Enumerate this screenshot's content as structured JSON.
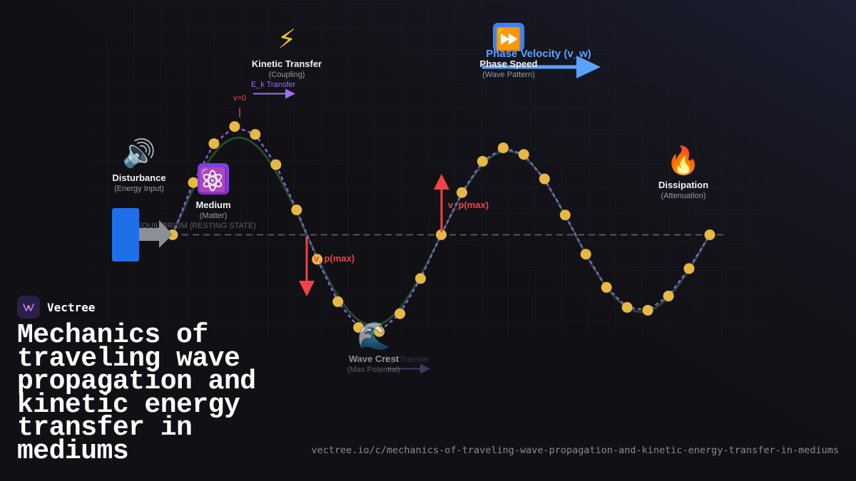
{
  "colors": {
    "background": "#111014",
    "wave": "#1f4d2a",
    "particles": "#e6b844",
    "particle_links": "#8a5cd6",
    "velocity_arrow": "#ef4444",
    "phase_arrow": "#5aa2ff",
    "source_block": "#1f6fe8",
    "transfer_arrow": "#a36df0"
  },
  "diagram": {
    "equilibrium_label": "EQUILIBRIUM (RESTING STATE)",
    "nodes": [
      {
        "id": "disturbance",
        "icon": "speaker-icon",
        "glyph": "🔊",
        "title": "Disturbance",
        "subtitle": "(Energy Input)"
      },
      {
        "id": "medium",
        "icon": "atom-icon",
        "glyph": "⚛️",
        "title": "Medium",
        "subtitle": "(Matter)"
      },
      {
        "id": "kinetic",
        "icon": "lightning-icon",
        "glyph": "⚡",
        "title": "Kinetic Transfer",
        "subtitle": "(Coupling)"
      },
      {
        "id": "phase",
        "icon": "fast-forward-icon",
        "glyph": "⏩",
        "title": "Phase Speed",
        "subtitle": "(Wave Pattern)"
      },
      {
        "id": "dissipation",
        "icon": "fire-icon",
        "glyph": "🔥",
        "title": "Dissipation",
        "subtitle": "(Attenuation)"
      },
      {
        "id": "crest",
        "icon": "wave-icon",
        "glyph": "🌊",
        "title": "Wave Crest",
        "subtitle": "(Max Potential)"
      }
    ],
    "annotations": {
      "v_zero": "v=0",
      "ek_transfer": "E_k Transfer",
      "ek_transfer_faded": "E_k Transfer",
      "phase_velocity": "Phase Velocity (v_w)",
      "vp_max_down": "v_p(max)",
      "vp_max_up": "v_p(max)"
    }
  },
  "brand": {
    "name": "Vectree",
    "logo_icon": "vectree-logo-icon"
  },
  "headline": "Mechanics of traveling wave propagation and kinetic energy transfer in mediums",
  "url": "vectree.io/c/mechanics-of-traveling-wave-propagation-and-kinetic-energy-transfer-in-mediums"
}
